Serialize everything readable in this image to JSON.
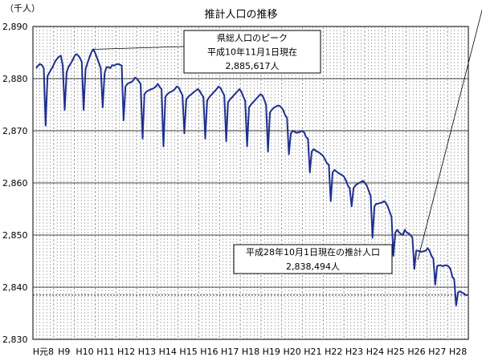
{
  "chart_data": {
    "type": "line",
    "title": "推計人口の推移",
    "unit_label": "（千人）",
    "y_ticks": [
      "2,890",
      "2,880",
      "2,870",
      "2,860",
      "2,850",
      "2,840",
      "2,830"
    ],
    "y_tick_values": [
      2890,
      2880,
      2870,
      2860,
      2850,
      2840,
      2830
    ],
    "ylim": [
      2830,
      2890
    ],
    "x_ticks": [
      "H元8",
      "H9",
      "H10",
      "H11",
      "H12",
      "H13",
      "H14",
      "H15",
      "H16",
      "H17",
      "H18",
      "H19",
      "H20",
      "H21",
      "H22",
      "H23",
      "H24",
      "H25",
      "H26",
      "H27",
      "H28"
    ],
    "grid": true,
    "colors": {
      "line": "#1f2f8f",
      "grid": "#000000",
      "minor_grid": "#888888"
    },
    "series": [
      {
        "values": [
          2882.0,
          2882.5,
          2882.8,
          2882.6,
          2882.0,
          2871.0,
          2880.5,
          2881.2,
          2881.8,
          2882.5,
          2883.3,
          2883.8,
          2884.2,
          2884.4,
          2882.5,
          2874.0,
          2881.2,
          2882.2,
          2882.8,
          2883.4,
          2884.2,
          2884.7,
          2884.5,
          2884.0,
          2883.2,
          2874.0,
          2881.8,
          2883.0,
          2884.0,
          2885.0,
          2885.617,
          2885.0,
          2884.0,
          2883.0,
          2882.0,
          2874.5,
          2881.0,
          2882.2,
          2882.2,
          2882.0,
          2882.6,
          2882.5,
          2882.7,
          2882.8,
          2882.7,
          2882.5,
          2872.0,
          2878.5,
          2879.0,
          2879.2,
          2879.3,
          2879.6,
          2880.2,
          2880.0,
          2879.5,
          2879.0,
          2868.5,
          2877.0,
          2877.5,
          2877.7,
          2877.9,
          2878.0,
          2878.2,
          2878.5,
          2879.0,
          2878.4,
          2878.0,
          2867.0,
          2876.5,
          2877.0,
          2877.3,
          2877.5,
          2877.7,
          2878.0,
          2878.5,
          2878.3,
          2877.5,
          2876.8,
          2869.5,
          2876.0,
          2876.5,
          2876.8,
          2877.1,
          2877.4,
          2877.7,
          2878.0,
          2877.7,
          2877.0,
          2876.5,
          2868.5,
          2875.8,
          2876.4,
          2876.8,
          2877.2,
          2877.6,
          2878.0,
          2878.5,
          2878.2,
          2877.5,
          2876.8,
          2868.0,
          2875.5,
          2876.0,
          2876.4,
          2876.8,
          2877.2,
          2877.6,
          2878.0,
          2877.5,
          2876.5,
          2875.8,
          2867.0,
          2874.5,
          2875.0,
          2875.4,
          2875.8,
          2876.2,
          2876.6,
          2877.0,
          2876.8,
          2876.0,
          2875.0,
          2866.0,
          2873.5,
          2874.0,
          2874.4,
          2874.6,
          2874.8,
          2874.8,
          2874.5,
          2874.0,
          2873.0,
          2872.5,
          2865.5,
          2869.5,
          2870.0,
          2869.8,
          2869.6,
          2869.7,
          2869.8,
          2870.0,
          2869.7,
          2868.8,
          2868.5,
          2862.0,
          2866.0,
          2866.5,
          2866.2,
          2866.0,
          2865.8,
          2865.5,
          2865.2,
          2864.5,
          2863.8,
          2863.5,
          2856.5,
          2862.0,
          2862.5,
          2862.2,
          2861.9,
          2861.7,
          2861.5,
          2861.2,
          2860.5,
          2859.5,
          2859.0,
          2855.5,
          2859.0,
          2859.5,
          2859.8,
          2860.0,
          2860.2,
          2860.4,
          2860.0,
          2859.5,
          2858.5,
          2857.5,
          2849.5,
          2855.5,
          2856.0,
          2856.0,
          2856.2,
          2856.2,
          2856.5,
          2856.2,
          2855.5,
          2854.5,
          2853.5,
          2846.0,
          2850.5,
          2851.0,
          2850.5,
          2850.2,
          2850.0,
          2851.0,
          2850.5,
          2850.3,
          2850.0,
          2849.5,
          2843.5,
          2847.0,
          2847.0,
          2846.8,
          2846.8,
          2846.9,
          2847.0,
          2847.5,
          2847.0,
          2846.0,
          2845.5,
          2840.5,
          2844.0,
          2844.2,
          2844.2,
          2844.0,
          2844.2,
          2844.2,
          2844.0,
          2843.5,
          2842.0,
          2841.5,
          2836.5,
          2839.0,
          2839.2,
          2839.0,
          2838.8,
          2838.5,
          2838.494
        ]
      }
    ],
    "annotations": [
      {
        "id": "peak",
        "lines": [
          "県総人口のピーク",
          "平成10年11月1日現在",
          "2,885,617人"
        ],
        "point_index": 30
      },
      {
        "id": "latest",
        "lines": [
          "平成28年10月1日現在の推計人口",
          "2,838,494人"
        ],
        "point_index": 236
      }
    ],
    "reference_line_value": 2838.494
  }
}
